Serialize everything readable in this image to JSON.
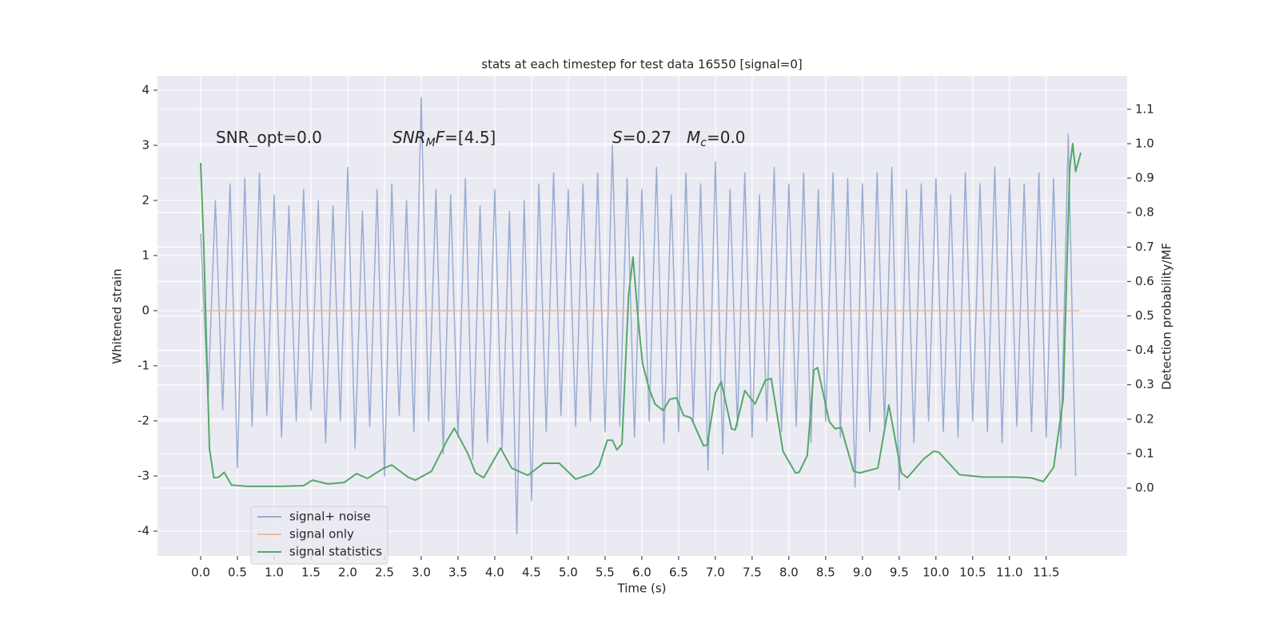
{
  "chart_data": {
    "type": "line",
    "title": "stats at each timestep for test data 16550 [signal=0]",
    "xlabel": "Time (s)",
    "ylabel": "Whitened strain",
    "y2label": "Detection probability/MF",
    "xlim": [
      -0.587,
      12.6
    ],
    "ylim": [
      -4.45,
      4.26
    ],
    "y2lim": [
      -0.197,
      1.197
    ],
    "xticks": [
      {
        "value": 0,
        "label": "0.0"
      },
      0.5,
      {
        "value": 1,
        "label": "1.0"
      },
      1.5,
      {
        "value": 2,
        "label": "2.0"
      },
      2.5,
      {
        "value": 3,
        "label": "3.0"
      },
      3.5,
      {
        "value": 4,
        "label": "4.0"
      },
      4.5,
      {
        "value": 5,
        "label": "5.0"
      },
      5.5,
      {
        "value": 6,
        "label": "6.0"
      },
      6.5,
      {
        "value": 7,
        "label": "7.0"
      },
      7.5,
      {
        "value": 8,
        "label": "8.0"
      },
      8.5,
      {
        "value": 9,
        "label": "9.0"
      },
      9.5,
      {
        "value": 10,
        "label": "10.0"
      },
      10.5,
      {
        "value": 11,
        "label": "11.0"
      },
      11.5
    ],
    "yticks": [
      -4,
      -3,
      -2,
      -1,
      0,
      1,
      2,
      3,
      4
    ],
    "y2ticks": [
      {
        "value": 0,
        "label": "0.0"
      },
      0.1,
      0.2,
      0.3,
      0.4,
      0.5,
      0.6,
      0.7,
      0.8,
      0.9,
      {
        "value": 1,
        "label": "1.0"
      },
      1.1
    ],
    "grid": true,
    "legend": "lower left",
    "annotations": [
      {
        "parts": [
          {
            "text": "SNR_opt=0.0"
          }
        ]
      },
      {
        "parts": [
          {
            "text": "SNR",
            "style": "italic"
          },
          {
            "text": "M",
            "style": "sub"
          },
          {
            "text": "F",
            "style": "italic"
          },
          {
            "text": "=[4.5]"
          }
        ]
      },
      {
        "parts": [
          {
            "text": "S",
            "style": "italic"
          },
          {
            "text": "=0.27"
          }
        ]
      },
      {
        "parts": [
          {
            "text": "M",
            "style": "italic"
          },
          {
            "text": "c",
            "style": "sub"
          },
          {
            "text": "=0.0"
          }
        ]
      }
    ],
    "series": [
      {
        "name": "signal+ noise",
        "color": "#9aacd2",
        "x": [
          0,
          0.1,
          0.2,
          0.3,
          0.4,
          0.5,
          0.6,
          0.7,
          0.8,
          0.9,
          1,
          1.1,
          1.2,
          1.3,
          1.4,
          1.5,
          1.6,
          1.7,
          1.8,
          1.9,
          2,
          2.1,
          2.2,
          2.3,
          2.4,
          2.5,
          2.6,
          2.7,
          2.8,
          2.9,
          3,
          3.1,
          3.2,
          3.3,
          3.4,
          3.5,
          3.6,
          3.7,
          3.8,
          3.9,
          4,
          4.1,
          4.2,
          4.3,
          4.4,
          4.5,
          4.6,
          4.7,
          4.8,
          4.9,
          5,
          5.1,
          5.2,
          5.3,
          5.4,
          5.5,
          5.6,
          5.7,
          5.8,
          5.9,
          6,
          6.1,
          6.2,
          6.3,
          6.4,
          6.5,
          6.6,
          6.7,
          6.8,
          6.9,
          7,
          7.1,
          7.2,
          7.3,
          7.4,
          7.5,
          7.6,
          7.7,
          7.8,
          7.9,
          8,
          8.1,
          8.2,
          8.3,
          8.4,
          8.5,
          8.6,
          8.7,
          8.8,
          8.9,
          9,
          9.1,
          9.2,
          9.3,
          9.4,
          9.5,
          9.6,
          9.7,
          9.8,
          9.9,
          10,
          10.1,
          10.2,
          10.3,
          10.4,
          10.5,
          10.6,
          10.7,
          10.8,
          10.9,
          11,
          11.1,
          11.2,
          11.3,
          11.4,
          11.5,
          11.6,
          11.7,
          11.8,
          11.9
        ],
        "values": [
          1.4,
          -1.6,
          2.0,
          -1.8,
          2.3,
          -2.85,
          2.4,
          -2.1,
          2.5,
          -1.9,
          2.1,
          -2.3,
          1.9,
          -2.0,
          2.2,
          -1.8,
          2.0,
          -2.4,
          1.9,
          -2.0,
          2.6,
          -2.5,
          1.8,
          -2.1,
          2.2,
          -3.0,
          2.3,
          -1.9,
          2.0,
          -2.2,
          3.87,
          -2.0,
          2.2,
          -2.6,
          2.1,
          -2.3,
          2.4,
          -2.7,
          1.9,
          -2.4,
          2.2,
          -2.5,
          1.8,
          -4.05,
          2.0,
          -3.45,
          2.3,
          -2.2,
          2.5,
          -1.9,
          2.2,
          -2.1,
          2.3,
          -2.0,
          2.5,
          -2.2,
          3.0,
          -2.1,
          2.4,
          -2.3,
          2.2,
          -2.0,
          2.6,
          -2.4,
          2.1,
          -2.2,
          2.5,
          -2.0,
          2.3,
          -2.9,
          2.7,
          -2.6,
          2.2,
          -2.1,
          2.5,
          -2.3,
          2.1,
          -2.0,
          2.6,
          -2.2,
          2.3,
          -2.1,
          2.5,
          -2.4,
          2.2,
          -2.0,
          2.5,
          -2.3,
          2.4,
          -3.2,
          2.3,
          -2.2,
          2.5,
          -2.1,
          2.6,
          -3.25,
          2.2,
          -2.4,
          2.3,
          -2.0,
          2.4,
          -2.2,
          2.1,
          -2.3,
          2.5,
          -2.0,
          2.3,
          -2.2,
          2.6,
          -2.4,
          2.4,
          -2.1,
          2.3,
          -2.2,
          2.5,
          -2.3,
          2.4,
          -2.5,
          3.2,
          -3.0
        ]
      },
      {
        "name": "signal only",
        "color": "#eeb99b",
        "x": [
          0,
          11.95
        ],
        "values": [
          0,
          0
        ]
      },
      {
        "name": "signal statistics",
        "color": "#55a868",
        "axis": "y2",
        "x": [
          0,
          0.04,
          0.12,
          0.18,
          0.25,
          0.32,
          0.42,
          0.64,
          1.08,
          1.4,
          1.52,
          1.73,
          1.95,
          2.12,
          2.27,
          2.49,
          2.6,
          2.82,
          2.92,
          3.14,
          3.36,
          3.45,
          3.63,
          3.74,
          3.85,
          4.01,
          4.08,
          4.23,
          4.45,
          4.66,
          4.88,
          5.1,
          5.32,
          5.42,
          5.53,
          5.6,
          5.66,
          5.73,
          5.82,
          5.88,
          5.95,
          6.01,
          6.1,
          6.18,
          6.29,
          6.38,
          6.47,
          6.57,
          6.67,
          6.84,
          6.89,
          7,
          7.08,
          7.22,
          7.27,
          7.4,
          7.54,
          7.68,
          7.76,
          7.92,
          8.09,
          8.14,
          8.25,
          8.34,
          8.39,
          8.55,
          8.63,
          8.71,
          8.88,
          8.96,
          9.21,
          9.36,
          9.53,
          9.61,
          9.83,
          9.97,
          10.04,
          10.32,
          10.64,
          11.08,
          11.29,
          11.46,
          11.6,
          11.73,
          11.82,
          11.86,
          11.9,
          11.97
        ],
        "values": [
          0.944,
          0.722,
          0.114,
          0.03,
          0.032,
          0.046,
          0.009,
          0.005,
          0.005,
          0.007,
          0.023,
          0.012,
          0.016,
          0.042,
          0.028,
          0.058,
          0.067,
          0.032,
          0.023,
          0.049,
          0.142,
          0.174,
          0.102,
          0.044,
          0.03,
          0.09,
          0.116,
          0.058,
          0.037,
          0.072,
          0.072,
          0.026,
          0.042,
          0.065,
          0.139,
          0.139,
          0.111,
          0.128,
          0.559,
          0.671,
          0.49,
          0.362,
          0.288,
          0.244,
          0.225,
          0.258,
          0.262,
          0.211,
          0.204,
          0.123,
          0.125,
          0.276,
          0.309,
          0.172,
          0.169,
          0.283,
          0.244,
          0.313,
          0.318,
          0.107,
          0.044,
          0.046,
          0.095,
          0.343,
          0.35,
          0.193,
          0.172,
          0.176,
          0.049,
          0.044,
          0.058,
          0.241,
          0.044,
          0.03,
          0.084,
          0.107,
          0.104,
          0.039,
          0.032,
          0.032,
          0.03,
          0.019,
          0.06,
          0.258,
          0.93,
          1.0,
          0.919,
          0.974
        ]
      }
    ]
  }
}
